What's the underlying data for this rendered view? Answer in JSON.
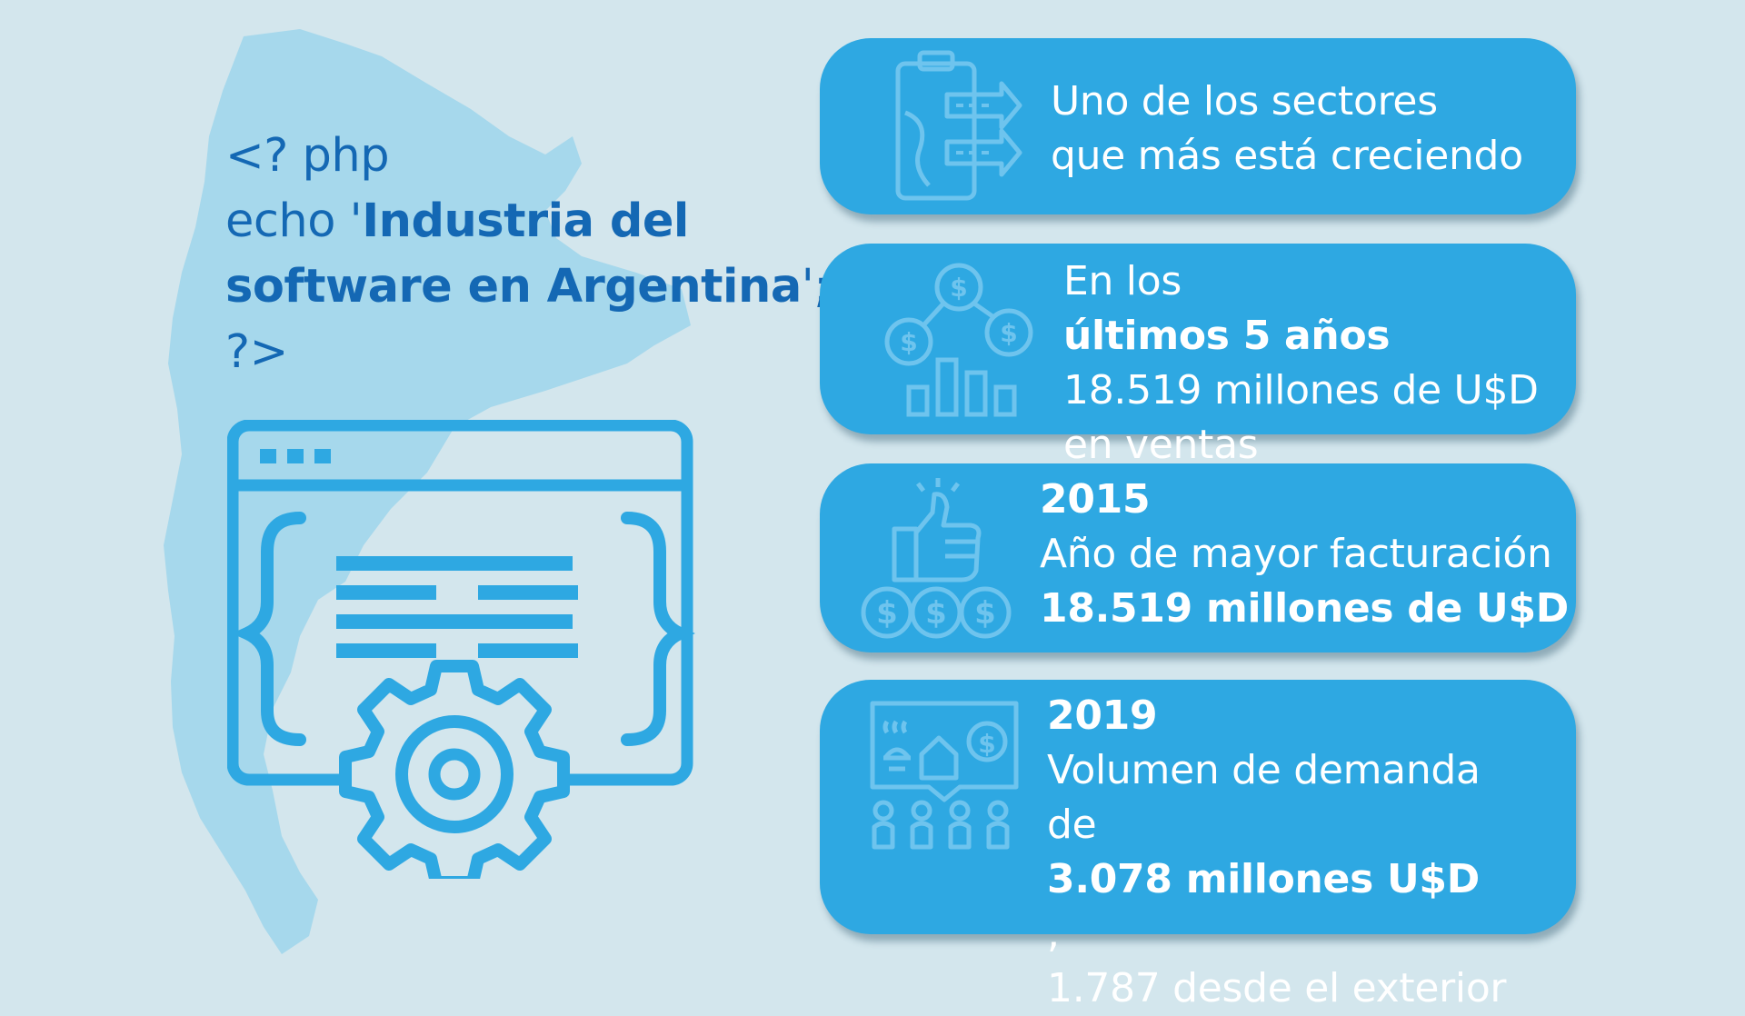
{
  "code": {
    "line1": "<? php",
    "line2_prefix": "echo '",
    "line2_bold": "Industria del",
    "line3_bold": "software en Argentina",
    "line3_suffix": "';",
    "line4": "?>"
  },
  "cards": [
    {
      "icon": "clipboard-arrows-icon",
      "lines": [
        "Uno de los sectores",
        "que más está creciendo"
      ]
    },
    {
      "icon": "money-network-chart-icon",
      "line1_prefix": "En los ",
      "line1_bold": "últimos 5 años",
      "line2": "18.519 millones de U$D",
      "line3": "en ventas"
    },
    {
      "icon": "thumbs-up-coins-icon",
      "year": "2015",
      "line2": "Año de mayor facturación",
      "line3_bold": "18.519 millones de U$D"
    },
    {
      "icon": "market-demand-icon",
      "year": "2019",
      "line2": "Volumen de demanda",
      "line3_prefix": "de ",
      "line3_bold": "3.078 millones U$D",
      "line3_suffix": ",",
      "line4": "1.787 desde el exterior"
    }
  ],
  "colors": {
    "background": "#d3e6ed",
    "map": "#a6d8ec",
    "code_text": "#1468b4",
    "card": "#2ea8e2",
    "icon": "#2ea8e2",
    "card_icon": "#6ec4ee"
  }
}
